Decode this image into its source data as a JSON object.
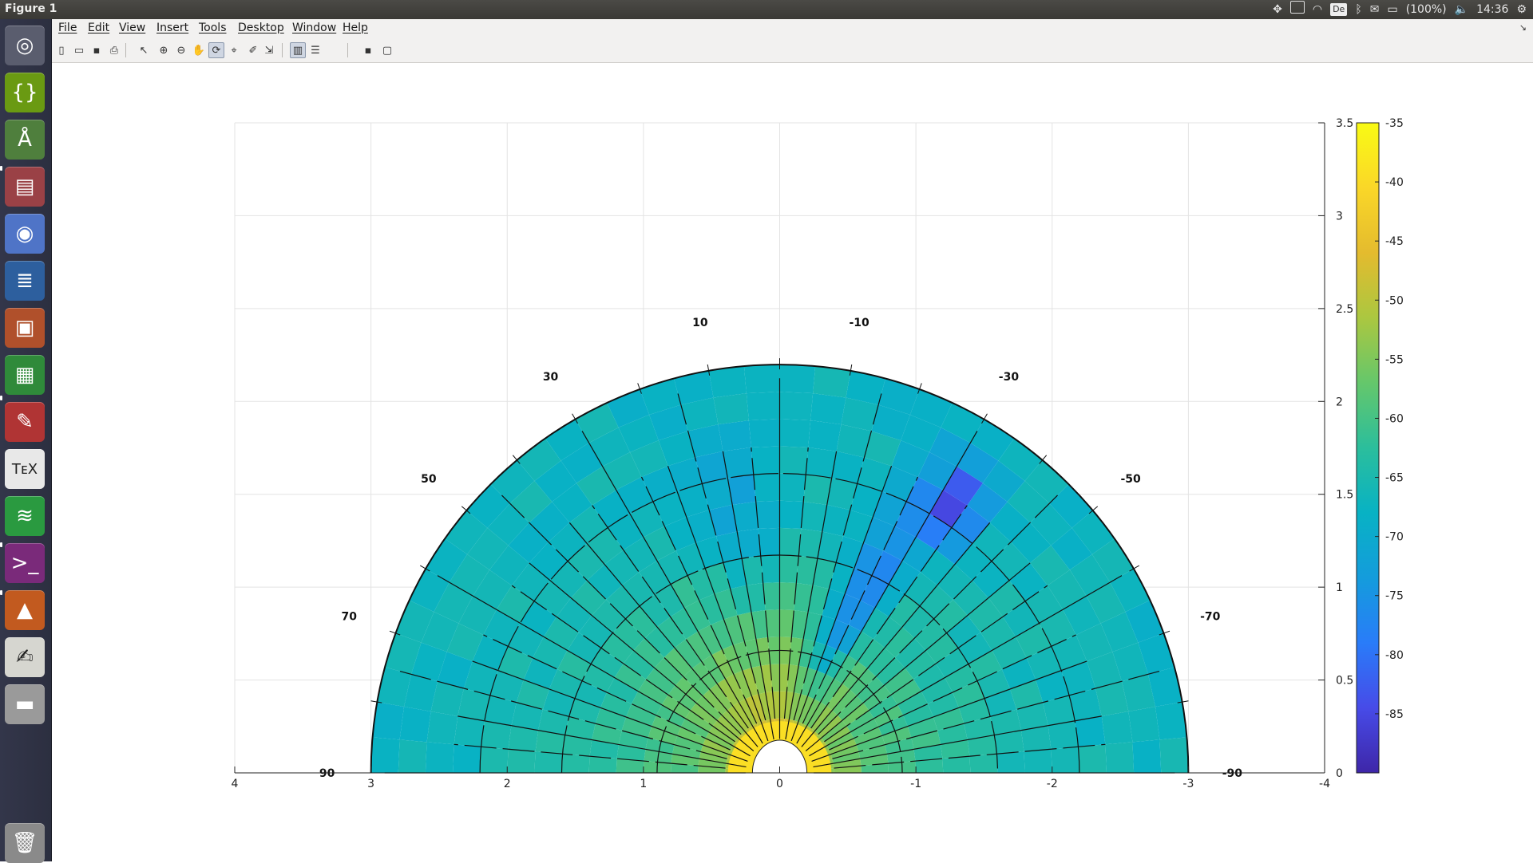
{
  "window": {
    "title": "Figure 1"
  },
  "panel": {
    "battery": "(100%)",
    "clock": "14:36",
    "keyboard": "De",
    "icons": [
      "dropbox-icon",
      "display-icon",
      "wifi-icon",
      "keyboard-icon",
      "bluetooth-icon",
      "mail-icon",
      "battery-icon",
      "volume-icon",
      "gear-icon"
    ]
  },
  "launcher": {
    "apps": [
      {
        "name": "ubuntu-dash-icon",
        "color": "#5a5d6e"
      },
      {
        "name": "brackets-icon",
        "color": "#6a9a12"
      },
      {
        "name": "android-studio-icon",
        "color": "#4f7f3d"
      },
      {
        "name": "file-manager-icon",
        "color": "#9a4146"
      },
      {
        "name": "chromium-icon",
        "color": "#4f74c7"
      },
      {
        "name": "writer-icon",
        "color": "#2d5f9e"
      },
      {
        "name": "impress-icon",
        "color": "#b0502b"
      },
      {
        "name": "calc-icon",
        "color": "#2f8a3a"
      },
      {
        "name": "system-settings-icon",
        "color": "#b03434"
      },
      {
        "name": "texmaker-icon",
        "color": "#e8e8e8"
      },
      {
        "name": "spotify-icon",
        "color": "#2a9a40"
      },
      {
        "name": "terminal-icon",
        "color": "#7a2a7a"
      },
      {
        "name": "matlab-icon",
        "color": "#c25a1f"
      },
      {
        "name": "text-editor-icon",
        "color": "#d6d6d0"
      },
      {
        "name": "disk-icon",
        "color": "#9a9a9a"
      },
      {
        "name": "trash-icon",
        "color": "#8a8a8a"
      }
    ]
  },
  "menu": {
    "items": [
      "File",
      "Edit",
      "View",
      "Insert",
      "Tools",
      "Desktop",
      "Window",
      "Help"
    ]
  },
  "toolbar": {
    "buttons": [
      "new-figure-icon",
      "open-file-icon",
      "save-icon",
      "print-icon",
      "pointer-icon",
      "zoom-in-icon",
      "zoom-out-icon",
      "pan-icon",
      "rotate-icon",
      "data-cursor-icon",
      "brush-icon",
      "link-icon",
      "colorbar-icon",
      "legend-icon",
      "hide-tools-icon",
      "show-tools-icon"
    ]
  },
  "chart_data": {
    "type": "heatmap",
    "subtype": "polar-half",
    "title": "",
    "xlabel": "",
    "ylabel": "",
    "xlim": [
      4,
      -4
    ],
    "ylim": [
      0,
      3.5
    ],
    "x_ticks": [
      "4",
      "3",
      "2",
      "1",
      "0",
      "-1",
      "-2",
      "-3",
      "-4"
    ],
    "y_ticks": [
      "0",
      "0.5",
      "1",
      "1.5",
      "2",
      "2.5",
      "3",
      "3.5"
    ],
    "angle_labels": [
      "90",
      "70",
      "50",
      "30",
      "10",
      "-10",
      "-30",
      "-50",
      "-70",
      "-90"
    ],
    "radius_max": 3,
    "colorbar": {
      "ticks": [
        "-35",
        "-40",
        "-45",
        "-50",
        "-55",
        "-60",
        "-65",
        "-70",
        "-75",
        "-80",
        "-85"
      ],
      "range": [
        -90,
        -35
      ],
      "colormap": "parula"
    },
    "grid": true
  }
}
